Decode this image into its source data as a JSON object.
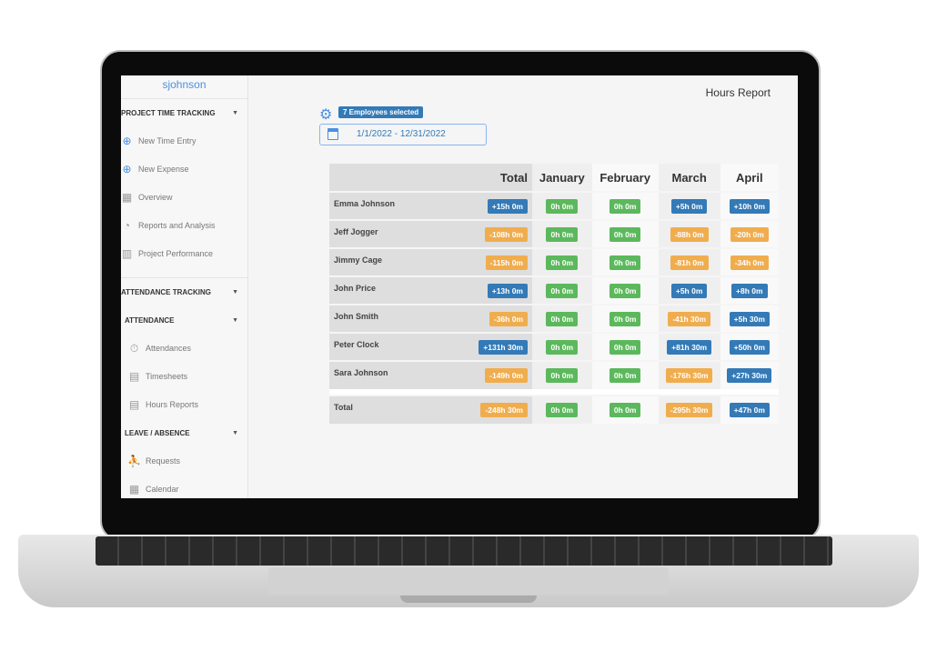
{
  "user": "sjohnson",
  "sidebar": {
    "project_section": "PROJECT TIME TRACKING",
    "project_items": [
      {
        "label": "New Time Entry",
        "icon": "plus-circle-icon"
      },
      {
        "label": "New Expense",
        "icon": "plus-circle-icon"
      },
      {
        "label": "Overview",
        "icon": "calendar-icon"
      },
      {
        "label": "Reports and Analysis",
        "icon": "pie-chart-icon"
      },
      {
        "label": "Project Performance",
        "icon": "bar-chart-icon"
      }
    ],
    "attendance_section": "ATTENDANCE TRACKING",
    "attendance_sub": "ATTENDANCE",
    "attendance_items": [
      {
        "label": "Attendances",
        "icon": "stopwatch-icon"
      },
      {
        "label": "Timesheets",
        "icon": "document-icon"
      },
      {
        "label": "Hours Reports",
        "icon": "document-icon"
      }
    ],
    "leave_sub": "LEAVE / ABSENCE",
    "leave_items": [
      {
        "label": "Requests",
        "icon": "running-person-icon"
      },
      {
        "label": "Calendar",
        "icon": "calendar-icon"
      }
    ]
  },
  "header": {
    "title": "Hours Report",
    "employees": "7 Employees selected",
    "date_range": "1/1/2022 - 12/31/2022"
  },
  "colors": {
    "positive": "#337ab7",
    "negative": "#f0ad4e",
    "zero": "#5cb85c"
  },
  "table": {
    "columns": [
      "Total",
      "January",
      "February",
      "March",
      "April"
    ],
    "rows": [
      {
        "name": "Emma Johnson",
        "values": [
          "+15h 0m",
          "0h 0m",
          "0h 0m",
          "+5h 0m",
          "+10h 0m"
        ]
      },
      {
        "name": "Jeff Jogger",
        "values": [
          "-108h 0m",
          "0h 0m",
          "0h 0m",
          "-88h 0m",
          "-20h 0m"
        ]
      },
      {
        "name": "Jimmy Cage",
        "values": [
          "-115h 0m",
          "0h 0m",
          "0h 0m",
          "-81h 0m",
          "-34h 0m"
        ]
      },
      {
        "name": "John Price",
        "values": [
          "+13h 0m",
          "0h 0m",
          "0h 0m",
          "+5h 0m",
          "+8h 0m"
        ]
      },
      {
        "name": "John Smith",
        "values": [
          "-36h 0m",
          "0h 0m",
          "0h 0m",
          "-41h 30m",
          "+5h 30m"
        ]
      },
      {
        "name": "Peter Clock",
        "values": [
          "+131h 30m",
          "0h 0m",
          "0h 0m",
          "+81h 30m",
          "+50h 0m"
        ]
      },
      {
        "name": "Sara Johnson",
        "values": [
          "-149h 0m",
          "0h 0m",
          "0h 0m",
          "-176h 30m",
          "+27h 30m"
        ]
      }
    ],
    "total": {
      "name": "Total",
      "values": [
        "-248h 30m",
        "0h 0m",
        "0h 0m",
        "-295h 30m",
        "+47h 0m"
      ]
    }
  }
}
